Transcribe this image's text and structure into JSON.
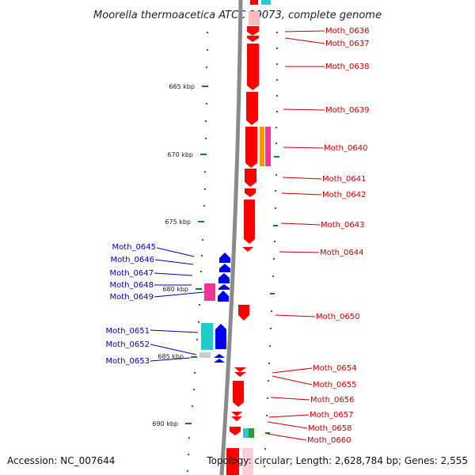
{
  "title": "Moorella thermoacetica ATCC 39073, complete genome",
  "accession": "Accession: NC_007644",
  "summary": "Topology: circular; Length: 2,628,784 bp; Genes: 2,555",
  "scale": {
    "ticks": [
      "665 kbp",
      "670 kbp",
      "675 kbp",
      "680 kbp",
      "685 kbp",
      "690 kbp"
    ]
  },
  "colors": {
    "forward_strand": "#ff0000",
    "reverse_strand": "#0000ee",
    "forward_label": "#cc0000",
    "reverse_label": "#0000bb",
    "backbone": "#8a8a8a",
    "tick": "#1e7a1e",
    "orange_feature": "#ff9900",
    "magenta_feature": "#ff3399",
    "cyan_feature": "#22cccc",
    "green_feature": "#339933"
  },
  "genes_forward": [
    "Moth_0636",
    "Moth_0637",
    "Moth_0638",
    "Moth_0639",
    "Moth_0640",
    "Moth_0641",
    "Moth_0642",
    "Moth_0643",
    "Moth_0644",
    "Moth_0650",
    "Moth_0654",
    "Moth_0655",
    "Moth_0656",
    "Moth_0657",
    "Moth_0658",
    "Moth_0660"
  ],
  "genes_reverse": [
    "Moth_0645",
    "Moth_0646",
    "Moth_0647",
    "Moth_0648",
    "Moth_0649",
    "Moth_0651",
    "Moth_0652",
    "Moth_0653"
  ]
}
